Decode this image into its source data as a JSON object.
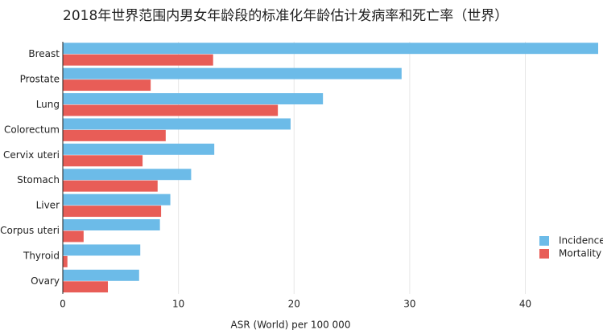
{
  "chart_data": {
    "type": "bar",
    "orientation": "horizontal",
    "title": "2018年世界范围内男女年龄段的标准化年龄估计发病率和死亡率（世界）",
    "x_label": "ASR (World) per 100 000",
    "categories": [
      "Breast",
      "Prostate",
      "Lung",
      "Colorectum",
      "Cervix uteri",
      "Stomach",
      "Liver",
      "Corpus uteri",
      "Thyroid",
      "Ovary"
    ],
    "series": [
      {
        "name": "Incidence",
        "color": "#6cbbe8",
        "values": [
          46.3,
          29.3,
          22.5,
          19.7,
          13.1,
          11.1,
          9.3,
          8.4,
          6.7,
          6.6
        ]
      },
      {
        "name": "Mortality",
        "color": "#e85d57",
        "values": [
          13.0,
          7.6,
          18.6,
          8.9,
          6.9,
          8.2,
          8.5,
          1.8,
          0.4,
          3.9
        ]
      }
    ],
    "xlim": [
      0,
      46.3
    ],
    "xticks": [
      0,
      10,
      20,
      30,
      40
    ],
    "grid": true,
    "legend": "right"
  }
}
